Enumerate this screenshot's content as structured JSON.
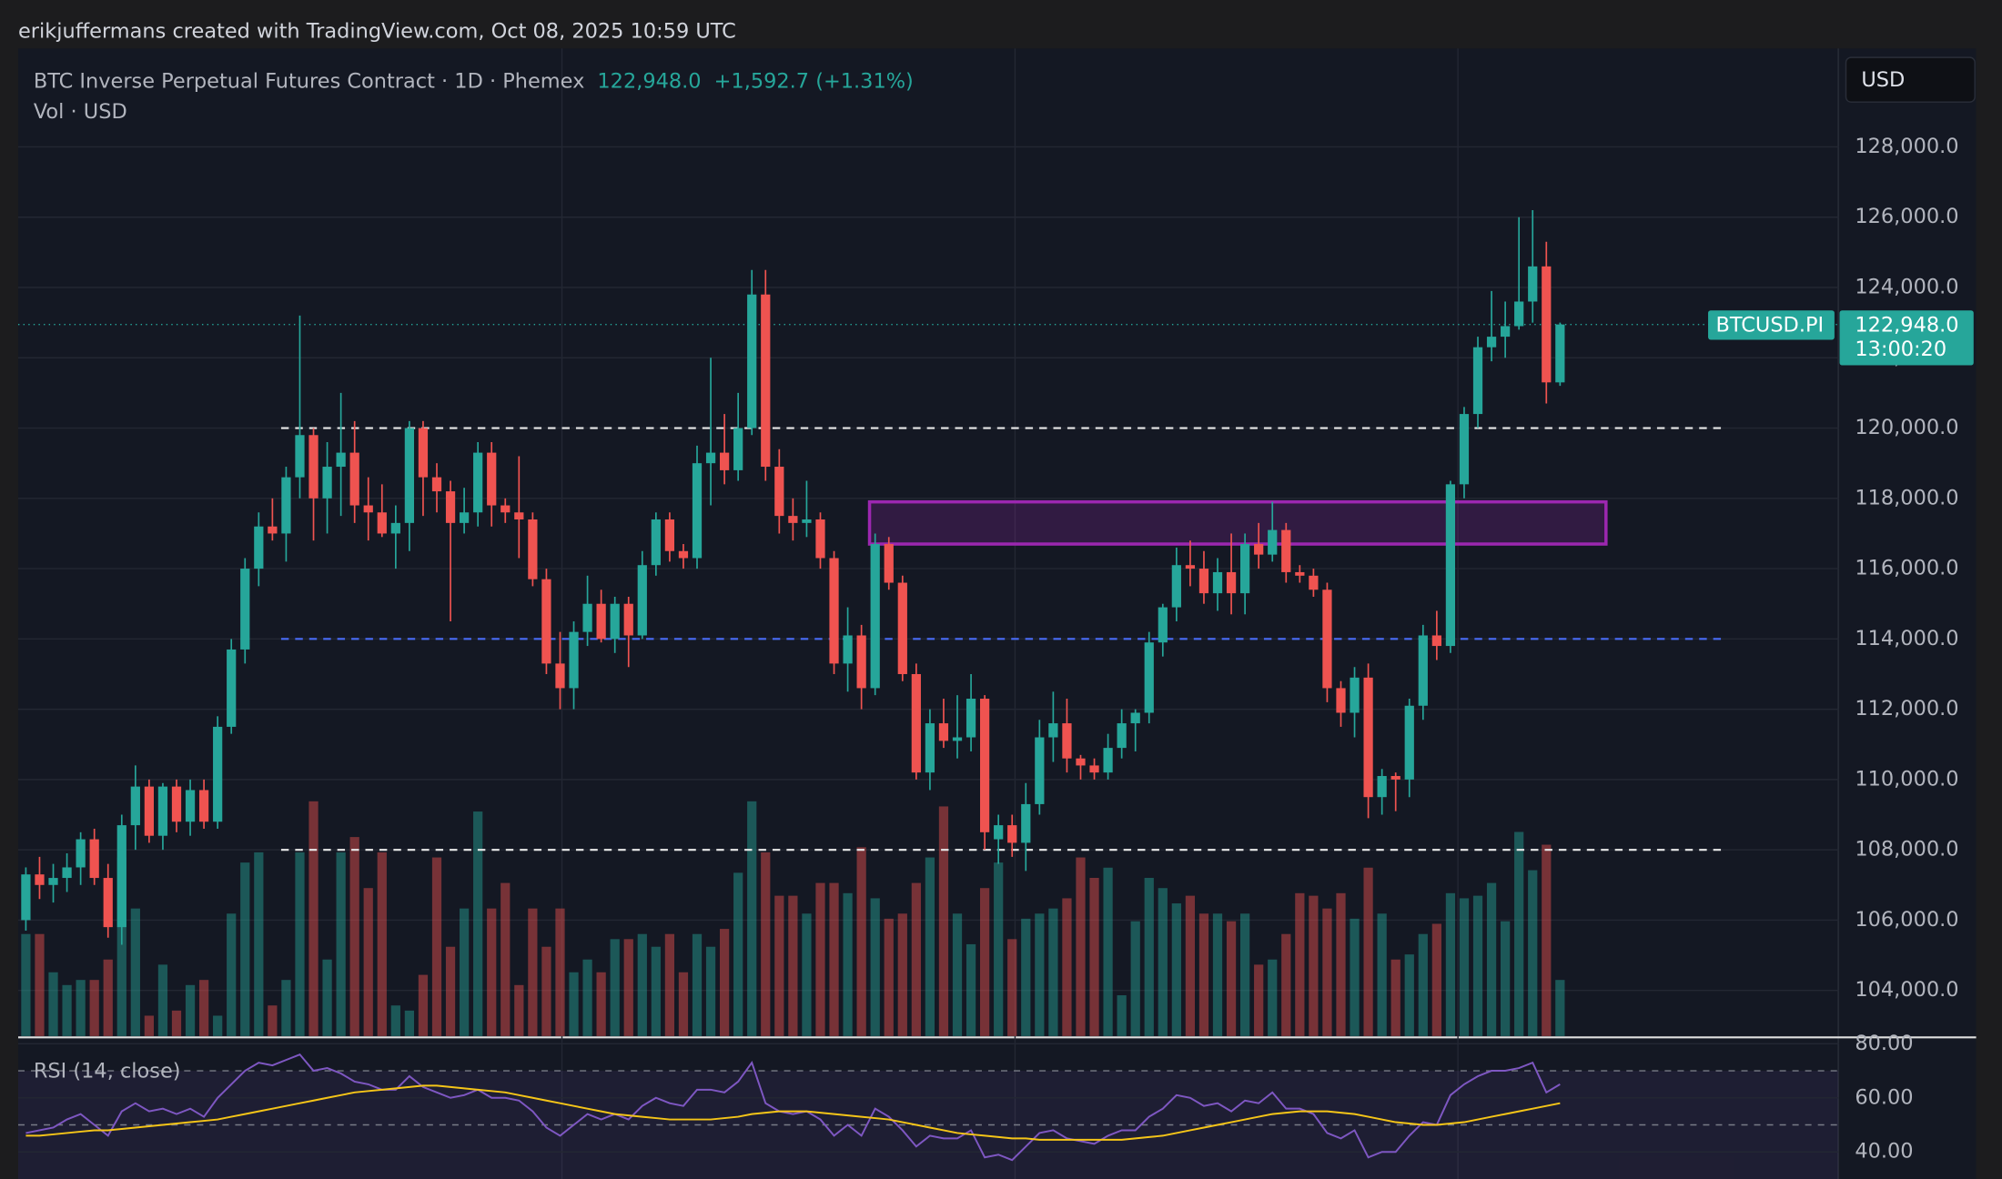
{
  "header": {
    "credit": "erikjuffermans created with TradingView.com, Oct 08, 2025 10:59 UTC",
    "symbol": "BTC Inverse Perpetual Futures Contract · 1D · Phemex",
    "price": "122,948.0",
    "change": "+1,592.7 (+1.31%)",
    "volume_label": "Vol · USD",
    "currency": "USD",
    "tag_symbol": "BTCUSD.PI",
    "countdown": "13:00:20"
  },
  "chart_data": {
    "type": "candlestick",
    "up_color": "#26a69a",
    "down_color": "#ef5350",
    "grid": true,
    "ylim": [
      102700,
      130800
    ],
    "yticks": [
      {
        "value": 104000,
        "label": "104,000.0"
      },
      {
        "value": 106000,
        "label": "106,000.0"
      },
      {
        "value": 108000,
        "label": "108,000.0"
      },
      {
        "value": 110000,
        "label": "110,000.0"
      },
      {
        "value": 112000,
        "label": "112,000.0"
      },
      {
        "value": 114000,
        "label": "114,000.0"
      },
      {
        "value": 116000,
        "label": "116,000.0"
      },
      {
        "value": 118000,
        "label": "118,000.0"
      },
      {
        "value": 120000,
        "label": "120,000.0"
      },
      {
        "value": 122000,
        "label": "122,000.0"
      },
      {
        "value": 124000,
        "label": "124,000.0"
      },
      {
        "value": 126000,
        "label": "126,000.0"
      },
      {
        "value": 128000,
        "label": "128,000.0"
      }
    ],
    "last_price": {
      "value": 122948,
      "label": "122,948.0"
    },
    "levels": [
      {
        "value": 120000,
        "color": "#e8e8e8"
      },
      {
        "value": 114000,
        "color": "#4a6cf7"
      },
      {
        "value": 108000,
        "color": "#e8e8e8"
      }
    ],
    "zone": {
      "top": 117900,
      "bottom": 116700,
      "color": "#9c27b0"
    },
    "ohlc": [
      [
        106000,
        107500,
        105700,
        107300
      ],
      [
        107300,
        107800,
        106600,
        107000
      ],
      [
        107000,
        107600,
        106500,
        107200
      ],
      [
        107200,
        107900,
        106800,
        107500
      ],
      [
        107500,
        108500,
        107000,
        108300
      ],
      [
        108300,
        108600,
        107000,
        107200
      ],
      [
        107200,
        107600,
        105500,
        105800
      ],
      [
        105800,
        109000,
        105300,
        108700
      ],
      [
        108700,
        110400,
        108000,
        109800
      ],
      [
        109800,
        110000,
        108200,
        108400
      ],
      [
        108400,
        109900,
        108000,
        109800
      ],
      [
        109800,
        110000,
        108500,
        108800
      ],
      [
        108800,
        110000,
        108400,
        109700
      ],
      [
        109700,
        110000,
        108600,
        108800
      ],
      [
        108800,
        111800,
        108600,
        111500
      ],
      [
        111500,
        114000,
        111300,
        113700
      ],
      [
        113700,
        116300,
        113300,
        116000
      ],
      [
        116000,
        117600,
        115500,
        117200
      ],
      [
        117200,
        118000,
        116800,
        117000
      ],
      [
        117000,
        118900,
        116200,
        118600
      ],
      [
        118600,
        123200,
        118000,
        119800
      ],
      [
        119800,
        120000,
        116800,
        118000
      ],
      [
        118000,
        119600,
        117000,
        118900
      ],
      [
        118900,
        121000,
        117500,
        119300
      ],
      [
        119300,
        120200,
        117300,
        117800
      ],
      [
        117800,
        118600,
        116800,
        117600
      ],
      [
        117600,
        118400,
        116900,
        117000
      ],
      [
        117000,
        117800,
        116000,
        117300
      ],
      [
        117300,
        120200,
        116500,
        120000
      ],
      [
        120000,
        120200,
        117500,
        118600
      ],
      [
        118600,
        119000,
        117600,
        118200
      ],
      [
        118200,
        118500,
        114500,
        117300
      ],
      [
        117300,
        118300,
        117000,
        117600
      ],
      [
        117600,
        119600,
        117200,
        119300
      ],
      [
        119300,
        119600,
        117200,
        117800
      ],
      [
        117800,
        118000,
        117300,
        117600
      ],
      [
        117600,
        119200,
        116300,
        117400
      ],
      [
        117400,
        117600,
        115500,
        115700
      ],
      [
        115700,
        116000,
        113000,
        113300
      ],
      [
        113300,
        114200,
        112000,
        112600
      ],
      [
        112600,
        114500,
        112000,
        114200
      ],
      [
        114200,
        115800,
        113800,
        115000
      ],
      [
        115000,
        115400,
        113900,
        114000
      ],
      [
        114000,
        115200,
        113600,
        115000
      ],
      [
        115000,
        115200,
        113200,
        114100
      ],
      [
        114100,
        116500,
        114000,
        116100
      ],
      [
        116100,
        117600,
        115800,
        117400
      ],
      [
        117400,
        117600,
        116200,
        116500
      ],
      [
        116500,
        116700,
        116000,
        116300
      ],
      [
        116300,
        119500,
        116000,
        119000
      ],
      [
        119000,
        122000,
        117800,
        119300
      ],
      [
        119300,
        120400,
        118400,
        118800
      ],
      [
        118800,
        121000,
        118500,
        120000
      ],
      [
        120000,
        124500,
        119800,
        123800
      ],
      [
        123800,
        124500,
        118500,
        118900
      ],
      [
        118900,
        119400,
        117000,
        117500
      ],
      [
        117500,
        118000,
        116800,
        117300
      ],
      [
        117300,
        118500,
        116900,
        117400
      ],
      [
        117400,
        117600,
        116000,
        116300
      ],
      [
        116300,
        116500,
        113000,
        113300
      ],
      [
        113300,
        114900,
        112500,
        114100
      ],
      [
        114100,
        114400,
        112000,
        112600
      ],
      [
        112600,
        117000,
        112400,
        116700
      ],
      [
        116700,
        116900,
        115400,
        115600
      ],
      [
        115600,
        115800,
        112800,
        113000
      ],
      [
        113000,
        113300,
        110000,
        110200
      ],
      [
        110200,
        112000,
        109700,
        111600
      ],
      [
        111600,
        112300,
        110900,
        111100
      ],
      [
        111100,
        112400,
        110600,
        111200
      ],
      [
        111200,
        113000,
        110800,
        112300
      ],
      [
        112300,
        112400,
        108000,
        108500
      ],
      [
        108300,
        109000,
        107600,
        108700
      ],
      [
        108700,
        109000,
        107800,
        108200
      ],
      [
        108200,
        109900,
        107400,
        109300
      ],
      [
        109300,
        111700,
        109000,
        111200
      ],
      [
        111200,
        112500,
        110500,
        111600
      ],
      [
        111600,
        112300,
        110200,
        110600
      ],
      [
        110600,
        110700,
        110000,
        110400
      ],
      [
        110400,
        110600,
        110000,
        110200
      ],
      [
        110200,
        111300,
        110000,
        110900
      ],
      [
        110900,
        112000,
        110600,
        111600
      ],
      [
        111600,
        112000,
        110800,
        111900
      ],
      [
        111900,
        114200,
        111600,
        113900
      ],
      [
        113900,
        115000,
        113500,
        114900
      ],
      [
        114900,
        116600,
        114500,
        116100
      ],
      [
        116100,
        116800,
        115500,
        116000
      ],
      [
        116000,
        116500,
        115000,
        115300
      ],
      [
        115300,
        116300,
        114800,
        115900
      ],
      [
        115900,
        117000,
        114700,
        115300
      ],
      [
        115300,
        117000,
        114700,
        116700
      ],
      [
        116700,
        117300,
        116000,
        116400
      ],
      [
        116400,
        117900,
        116200,
        117100
      ],
      [
        117100,
        117300,
        115600,
        115900
      ],
      [
        115900,
        116100,
        115600,
        115800
      ],
      [
        115800,
        116000,
        115200,
        115400
      ],
      [
        115400,
        115600,
        112200,
        112600
      ],
      [
        112600,
        112800,
        111500,
        111900
      ],
      [
        111900,
        113200,
        111200,
        112900
      ],
      [
        112900,
        113300,
        108900,
        109500
      ],
      [
        109500,
        110300,
        109000,
        110100
      ],
      [
        110100,
        110200,
        109100,
        110000
      ],
      [
        110000,
        112300,
        109500,
        112100
      ],
      [
        112100,
        114400,
        111700,
        114100
      ],
      [
        114100,
        114800,
        113400,
        113800
      ],
      [
        113800,
        118500,
        113600,
        118400
      ],
      [
        118400,
        120600,
        118000,
        120400
      ],
      [
        120400,
        122600,
        120000,
        122300
      ],
      [
        122300,
        123900,
        121900,
        122600
      ],
      [
        122600,
        123600,
        122000,
        122900
      ],
      [
        122900,
        126000,
        122800,
        123600
      ],
      [
        123600,
        126200,
        123000,
        124600
      ],
      [
        124600,
        125300,
        120700,
        121300
      ],
      [
        121300,
        123000,
        121200,
        122948
      ]
    ],
    "volume_ylim": [
      0,
      100
    ],
    "volume": [
      40,
      40,
      25,
      20,
      22,
      22,
      30,
      70,
      50,
      8,
      28,
      10,
      20,
      22,
      8,
      48,
      68,
      72,
      12,
      22,
      72,
      92,
      30,
      72,
      78,
      58,
      72,
      12,
      10,
      24,
      70,
      35,
      50,
      88,
      50,
      60,
      20,
      50,
      35,
      50,
      25,
      30,
      25,
      38,
      38,
      40,
      35,
      40,
      25,
      40,
      35,
      42,
      64,
      92,
      72,
      55,
      55,
      48,
      60,
      60,
      56,
      74,
      54,
      46,
      48,
      60,
      70,
      90,
      48,
      36,
      58,
      68,
      38,
      46,
      48,
      50,
      54,
      70,
      62,
      66,
      16,
      45,
      62,
      58,
      52,
      55,
      48,
      48,
      45,
      48,
      28,
      30,
      40,
      56,
      55,
      50,
      56,
      46,
      66,
      48,
      30,
      32,
      40,
      44,
      56,
      54,
      55,
      60,
      45,
      80,
      65,
      75,
      22
    ],
    "rsi_title": "RSI (14, close)",
    "rsi_color": "#7e57c2",
    "rsi_ma_color": "#f5c518",
    "rsi_ylim": [
      30,
      81.4
    ],
    "rsi_yticks": [
      {
        "value": 80,
        "label": "80.00"
      },
      {
        "value": 60,
        "label": "60.00"
      },
      {
        "value": 40,
        "label": "40.00"
      }
    ],
    "rsi_levels": [
      70,
      50
    ],
    "rsi": [
      47,
      48,
      49,
      52,
      54,
      50,
      46,
      55,
      58,
      55,
      56,
      54,
      56,
      53,
      60,
      65,
      70,
      73,
      72,
      74,
      76,
      70,
      71,
      69,
      66,
      65,
      63,
      63,
      68,
      64,
      62,
      60,
      61,
      63,
      60,
      60,
      59,
      55,
      49,
      46,
      50,
      54,
      52,
      54,
      52,
      57,
      60,
      58,
      57,
      63,
      63,
      62,
      66,
      73,
      58,
      55,
      54,
      55,
      52,
      46,
      50,
      46,
      56,
      53,
      48,
      42,
      46,
      45,
      45,
      48,
      38,
      39,
      37,
      42,
      47,
      48,
      45,
      44,
      43,
      46,
      48,
      48,
      53,
      56,
      61,
      60,
      57,
      58,
      55,
      59,
      58,
      62,
      56,
      56,
      54,
      47,
      45,
      48,
      38,
      40,
      40,
      46,
      51,
      50,
      61,
      65,
      68,
      70,
      70,
      71,
      73,
      62,
      65
    ],
    "rsi_ma": [
      46,
      46,
      46.5,
      47,
      47.5,
      48,
      48,
      48.5,
      49,
      49.5,
      50,
      50.5,
      51,
      51.5,
      52,
      53,
      54,
      55,
      56,
      57,
      58,
      59,
      60,
      61,
      62,
      62.5,
      63,
      63.5,
      64,
      64.5,
      64.5,
      64,
      63.5,
      63,
      62.5,
      62,
      61,
      60,
      59,
      58,
      57,
      56,
      55,
      54,
      53.5,
      53,
      52.5,
      52,
      52,
      52,
      52,
      52.5,
      53,
      54,
      54.5,
      55,
      55,
      55,
      54.5,
      54,
      53.5,
      53,
      52.5,
      52,
      51,
      50,
      49,
      48,
      47,
      46.5,
      46,
      45.5,
      45,
      45,
      44.5,
      44.5,
      44.5,
      44.5,
      44.5,
      44.5,
      44.5,
      45,
      45.5,
      46,
      47,
      48,
      49,
      50,
      51,
      52,
      53,
      54,
      54.5,
      55,
      55,
      55,
      54.5,
      54,
      53,
      52,
      51,
      50.5,
      50,
      50,
      50.5,
      51,
      52,
      53,
      54,
      55,
      56,
      57,
      58
    ]
  }
}
